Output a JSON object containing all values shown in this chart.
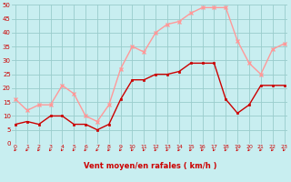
{
  "title": "",
  "xlabel": "Vent moyen/en rafales ( km/h )",
  "x": [
    0,
    1,
    2,
    3,
    4,
    5,
    6,
    7,
    8,
    9,
    10,
    11,
    12,
    13,
    14,
    15,
    16,
    17,
    18,
    19,
    20,
    21,
    22,
    23
  ],
  "y_mean": [
    7,
    8,
    7,
    10,
    10,
    7,
    7,
    5,
    7,
    16,
    23,
    23,
    25,
    25,
    26,
    29,
    29,
    29,
    16,
    11,
    14,
    21,
    21,
    21
  ],
  "y_gust": [
    16,
    12,
    14,
    14,
    21,
    18,
    10,
    8,
    14,
    27,
    35,
    33,
    40,
    43,
    44,
    47,
    49,
    49,
    49,
    37,
    29,
    25,
    34,
    36
  ],
  "mean_color": "#cc0000",
  "gust_color": "#ff9999",
  "bg_color": "#c8eef0",
  "grid_color": "#99cccc",
  "ylim": [
    0,
    50
  ],
  "ytick_vals": [
    0,
    5,
    10,
    15,
    20,
    25,
    30,
    35,
    40,
    45,
    50
  ],
  "xtick_vals": [
    0,
    1,
    2,
    3,
    4,
    5,
    6,
    7,
    8,
    9,
    10,
    11,
    12,
    13,
    14,
    15,
    16,
    17,
    18,
    19,
    20,
    21,
    22,
    23
  ],
  "xlabel_color": "#cc0000",
  "tick_color": "#cc0000",
  "arrow_color": "#cc0000",
  "xlim": [
    -0.3,
    23.3
  ]
}
